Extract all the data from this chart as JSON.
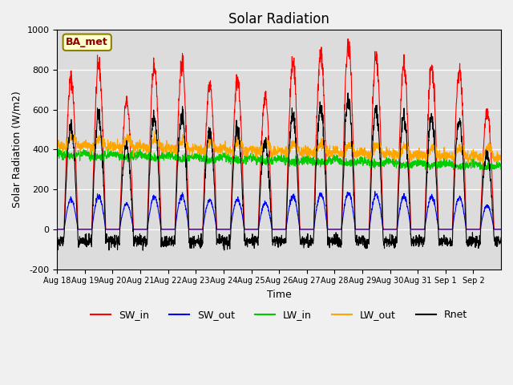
{
  "title": "Solar Radiation",
  "xlabel": "Time",
  "ylabel": "Solar Radiation (W/m2)",
  "ylim": [
    -200,
    1000
  ],
  "annotation": "BA_met",
  "plot_bg_color": "#dcdcdc",
  "fig_bg_color": "#f0f0f0",
  "n_days": 16,
  "colors": {
    "SW_in": "#ff0000",
    "SW_out": "#0000ff",
    "LW_in": "#00cc00",
    "LW_out": "#ffa500",
    "Rnet": "#000000"
  },
  "legend_labels": [
    "SW_in",
    "SW_out",
    "LW_in",
    "LW_out",
    "Rnet"
  ],
  "xtick_labels": [
    "Aug 18",
    "Aug 19",
    "Aug 20",
    "Aug 21",
    "Aug 22",
    "Aug 23",
    "Aug 24",
    "Aug 25",
    "Aug 26",
    "Aug 27",
    "Aug 28",
    "Aug 29",
    "Aug 30",
    "Aug 31",
    "Sep 1",
    "Sep 2"
  ],
  "ytick_labels": [
    -200,
    0,
    200,
    400,
    600,
    800,
    1000
  ],
  "sw_in_peaks": [
    760,
    820,
    640,
    820,
    840,
    730,
    750,
    660,
    830,
    880,
    920,
    860,
    830,
    810,
    800,
    590
  ]
}
